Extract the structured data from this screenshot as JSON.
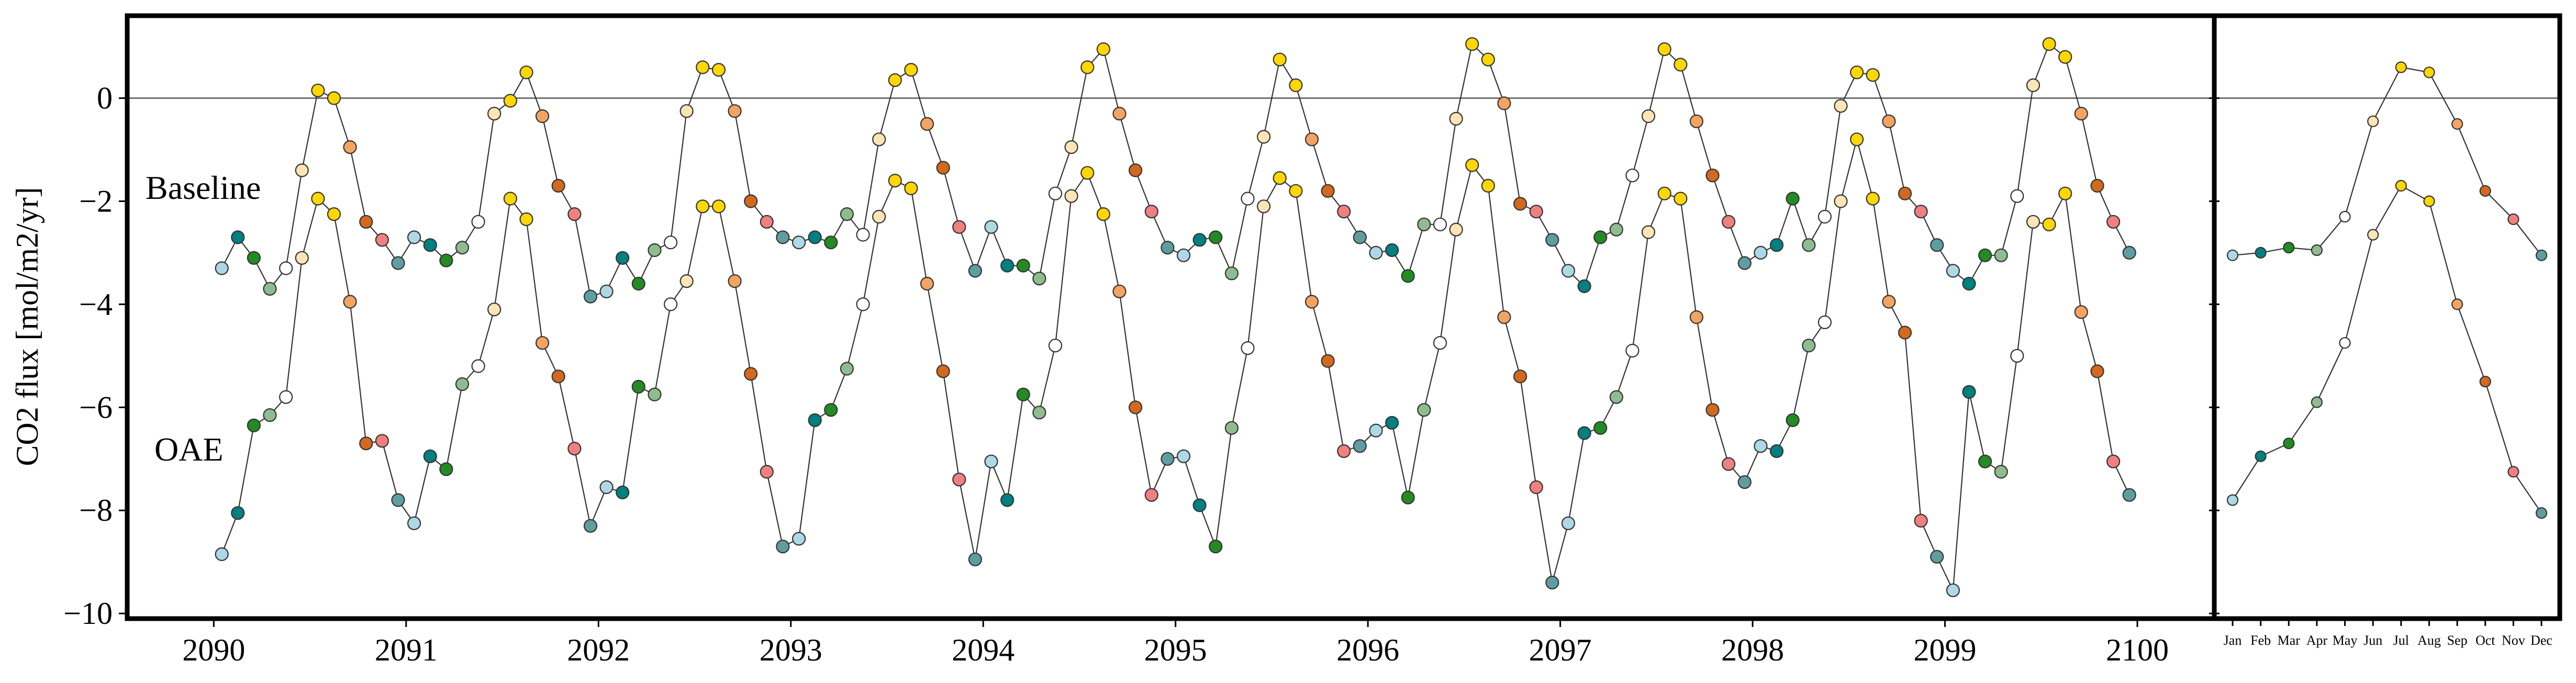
{
  "chart_data": [
    {
      "type": "line",
      "ylabel": "CO2 flux [mol/m2/yr]",
      "x_range": [
        2089.55,
        2100.4
      ],
      "ylim": [
        -10.1,
        1.6
      ],
      "x_ticks": [
        2090,
        2091,
        2092,
        2093,
        2094,
        2095,
        2096,
        2097,
        2098,
        2099,
        2100
      ],
      "y_ticks": [
        0,
        -2,
        -4,
        -6,
        -8,
        -10
      ],
      "y_tick_labels": [
        "0",
        "−2",
        "−4",
        "−6",
        "−8",
        "−10"
      ],
      "reference_line_y": 0,
      "month_colors": [
        "#add8e6",
        "#008080",
        "#228b22",
        "#8fbc8f",
        "#ffffff",
        "#ffe4b5",
        "#ffd700",
        "#ffd700",
        "#f4a460",
        "#d2691e",
        "#f08080",
        "#5f9ea0"
      ],
      "series": [
        {
          "name": "Baseline",
          "values": [
            -3.3,
            -2.7,
            -3.1,
            -3.7,
            -3.3,
            -1.4,
            0.15,
            0.0,
            -0.95,
            -2.4,
            -2.75,
            -3.2,
            -2.7,
            -2.85,
            -3.15,
            -2.9,
            -2.4,
            -0.3,
            -0.05,
            0.5,
            -0.35,
            -1.7,
            -2.25,
            -3.85,
            -3.75,
            -3.1,
            -3.6,
            -2.95,
            -2.8,
            -0.25,
            0.6,
            0.55,
            -0.25,
            -2.0,
            -2.4,
            -2.7,
            -2.8,
            -2.7,
            -2.8,
            -2.25,
            -2.65,
            -0.8,
            0.35,
            0.55,
            -0.5,
            -1.35,
            -2.5,
            -3.35,
            -2.5,
            -3.25,
            -3.25,
            -3.5,
            -1.85,
            -0.95,
            0.6,
            0.95,
            -0.3,
            -1.4,
            -2.2,
            -2.9,
            -3.05,
            -2.75,
            -2.7,
            -3.4,
            -1.95,
            -0.75,
            0.75,
            0.25,
            -0.8,
            -1.8,
            -2.2,
            -2.7,
            -3.0,
            -2.95,
            -3.45,
            -2.45,
            -2.45,
            -0.4,
            1.05,
            0.75,
            -0.1,
            -2.05,
            -2.2,
            -2.75,
            -3.35,
            -3.65,
            -2.7,
            -2.55,
            -1.5,
            -0.35,
            0.95,
            0.65,
            -0.45,
            -1.5,
            -2.4,
            -3.2,
            -3.0,
            -2.85,
            -1.95,
            -2.85,
            -2.3,
            -0.15,
            0.5,
            0.45,
            -0.45,
            -1.85,
            -2.2,
            -2.85,
            -3.35,
            -3.6,
            -3.05,
            -3.05,
            -1.9,
            0.25,
            1.05,
            0.8,
            -0.3,
            -1.7,
            -2.4,
            -3.0
          ]
        },
        {
          "name": "OAE",
          "values": [
            -8.85,
            -8.05,
            -6.35,
            -6.15,
            -5.8,
            -3.1,
            -1.95,
            -2.25,
            -3.95,
            -6.7,
            -6.65,
            -7.8,
            -8.25,
            -6.95,
            -7.2,
            -5.55,
            -5.2,
            -4.1,
            -1.95,
            -2.35,
            -4.75,
            -5.4,
            -6.8,
            -8.3,
            -7.55,
            -7.65,
            -5.6,
            -5.75,
            -4.0,
            -3.55,
            -2.1,
            -2.1,
            -3.55,
            -5.35,
            -7.25,
            -8.7,
            -8.55,
            -6.25,
            -6.05,
            -5.25,
            -4.0,
            -2.3,
            -1.6,
            -1.75,
            -3.6,
            -5.3,
            -7.4,
            -8.95,
            -7.05,
            -7.8,
            -5.75,
            -6.1,
            -4.8,
            -1.9,
            -1.45,
            -2.25,
            -3.75,
            -6.0,
            -7.7,
            -7.0,
            -6.95,
            -7.9,
            -8.7,
            -6.4,
            -4.85,
            -2.1,
            -1.55,
            -1.8,
            -3.95,
            -5.1,
            -6.85,
            -6.75,
            -6.45,
            -6.3,
            -7.75,
            -6.05,
            -4.75,
            -2.55,
            -1.3,
            -1.7,
            -4.25,
            -5.4,
            -7.55,
            -9.4,
            -8.25,
            -6.5,
            -6.4,
            -5.8,
            -4.9,
            -2.6,
            -1.85,
            -1.95,
            -4.25,
            -6.05,
            -7.1,
            -7.45,
            -6.75,
            -6.85,
            -6.25,
            -4.8,
            -4.35,
            -2.0,
            -0.8,
            -1.95,
            -3.95,
            -4.55,
            -8.2,
            -8.9,
            -9.55,
            -5.7,
            -7.05,
            -7.25,
            -5.0,
            -2.4,
            -2.45,
            -1.85,
            -4.15,
            -5.3,
            -7.05,
            -7.7
          ]
        }
      ],
      "series_labels": {
        "baseline": "Baseline",
        "oae": "OAE"
      }
    },
    {
      "type": "line",
      "categories": [
        "Jan",
        "Feb",
        "Mar",
        "Apr",
        "May",
        "Jun",
        "Jul",
        "Aug",
        "Sep",
        "Oct",
        "Nov",
        "Dec"
      ],
      "ylim": [
        -10.1,
        1.6
      ],
      "series": [
        {
          "name": "Baseline",
          "values": [
            -3.05,
            -3.0,
            -2.9,
            -2.95,
            -2.3,
            -0.45,
            0.6,
            0.5,
            -0.5,
            -1.8,
            -2.35,
            -3.05
          ]
        },
        {
          "name": "OAE",
          "values": [
            -7.8,
            -6.95,
            -6.7,
            -5.9,
            -4.75,
            -2.65,
            -1.7,
            -2.0,
            -4.0,
            -5.5,
            -7.25,
            -8.05
          ]
        }
      ]
    }
  ]
}
